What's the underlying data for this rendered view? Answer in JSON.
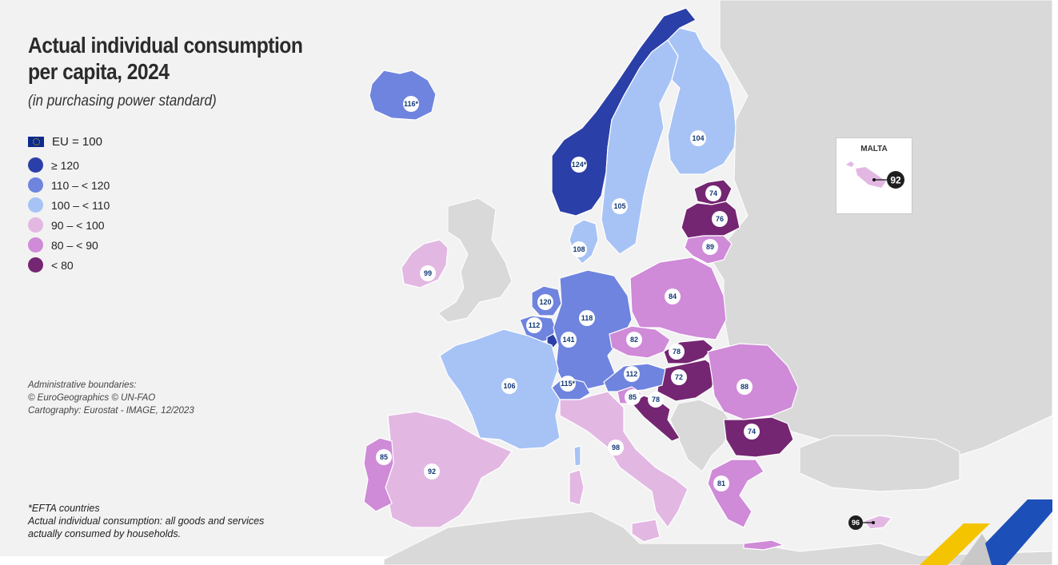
{
  "title_line1": "Actual individual consumption",
  "title_line2": "per capita, 2024",
  "subtitle": "(in purchasing power standard)",
  "legend": {
    "reference": "EU = 100",
    "classes": [
      {
        "label": "≥ 120",
        "color": "#2b3fa8"
      },
      {
        "label": "110 – < 120",
        "color": "#6f84de"
      },
      {
        "label": "100 – < 110",
        "color": "#a7c3f5"
      },
      {
        "label": "90 – < 100",
        "color": "#e2b8e3"
      },
      {
        "label": "80 – < 90",
        "color": "#cf8ad8"
      },
      {
        "label": "< 80",
        "color": "#742672"
      }
    ]
  },
  "credits": {
    "line1": "Administrative boundaries:",
    "line2": "© EuroGeographics © UN-FAO",
    "line3": "Cartography: Eurostat - IMAGE, 12/2023"
  },
  "notes": {
    "efta": "*EFTA countries",
    "definition": "Actual individual consumption: all goods and services actually consumed by households."
  },
  "inset": {
    "title": "MALTA",
    "value": "92"
  },
  "map_data": {
    "countries": [
      {
        "name": "Iceland",
        "value": "116*",
        "class": 1
      },
      {
        "name": "Norway",
        "value": "124*",
        "class": 0
      },
      {
        "name": "Sweden",
        "value": "105",
        "class": 2
      },
      {
        "name": "Finland",
        "value": "104",
        "class": 2
      },
      {
        "name": "Estonia",
        "value": "74",
        "class": 5
      },
      {
        "name": "Latvia",
        "value": "76",
        "class": 5
      },
      {
        "name": "Lithuania",
        "value": "89",
        "class": 4
      },
      {
        "name": "Denmark",
        "value": "108",
        "class": 2
      },
      {
        "name": "Ireland",
        "value": "99",
        "class": 3
      },
      {
        "name": "Netherlands",
        "value": "120",
        "class": 0
      },
      {
        "name": "Belgium",
        "value": "112",
        "class": 1
      },
      {
        "name": "Luxembourg",
        "value": "141",
        "class": 0
      },
      {
        "name": "Germany",
        "value": "118",
        "class": 1
      },
      {
        "name": "Poland",
        "value": "84",
        "class": 4
      },
      {
        "name": "Czechia",
        "value": "82",
        "class": 4
      },
      {
        "name": "Slovakia",
        "value": "78",
        "class": 5
      },
      {
        "name": "Hungary",
        "value": "72",
        "class": 5
      },
      {
        "name": "Austria",
        "value": "112",
        "class": 1
      },
      {
        "name": "Switzerland",
        "value": "115*",
        "class": 1
      },
      {
        "name": "France",
        "value": "106",
        "class": 2
      },
      {
        "name": "Slovenia",
        "value": "85",
        "class": 4
      },
      {
        "name": "Croatia",
        "value": "78",
        "class": 5
      },
      {
        "name": "Romania",
        "value": "88",
        "class": 4
      },
      {
        "name": "Bulgaria",
        "value": "74",
        "class": 5
      },
      {
        "name": "Italy",
        "value": "98",
        "class": 3
      },
      {
        "name": "Greece",
        "value": "81",
        "class": 4
      },
      {
        "name": "Cyprus",
        "value": "96",
        "class": 3
      },
      {
        "name": "Spain",
        "value": "92",
        "class": 3
      },
      {
        "name": "Portugal",
        "value": "85",
        "class": 4
      },
      {
        "name": "Malta",
        "value": "92",
        "class": 3
      }
    ]
  }
}
